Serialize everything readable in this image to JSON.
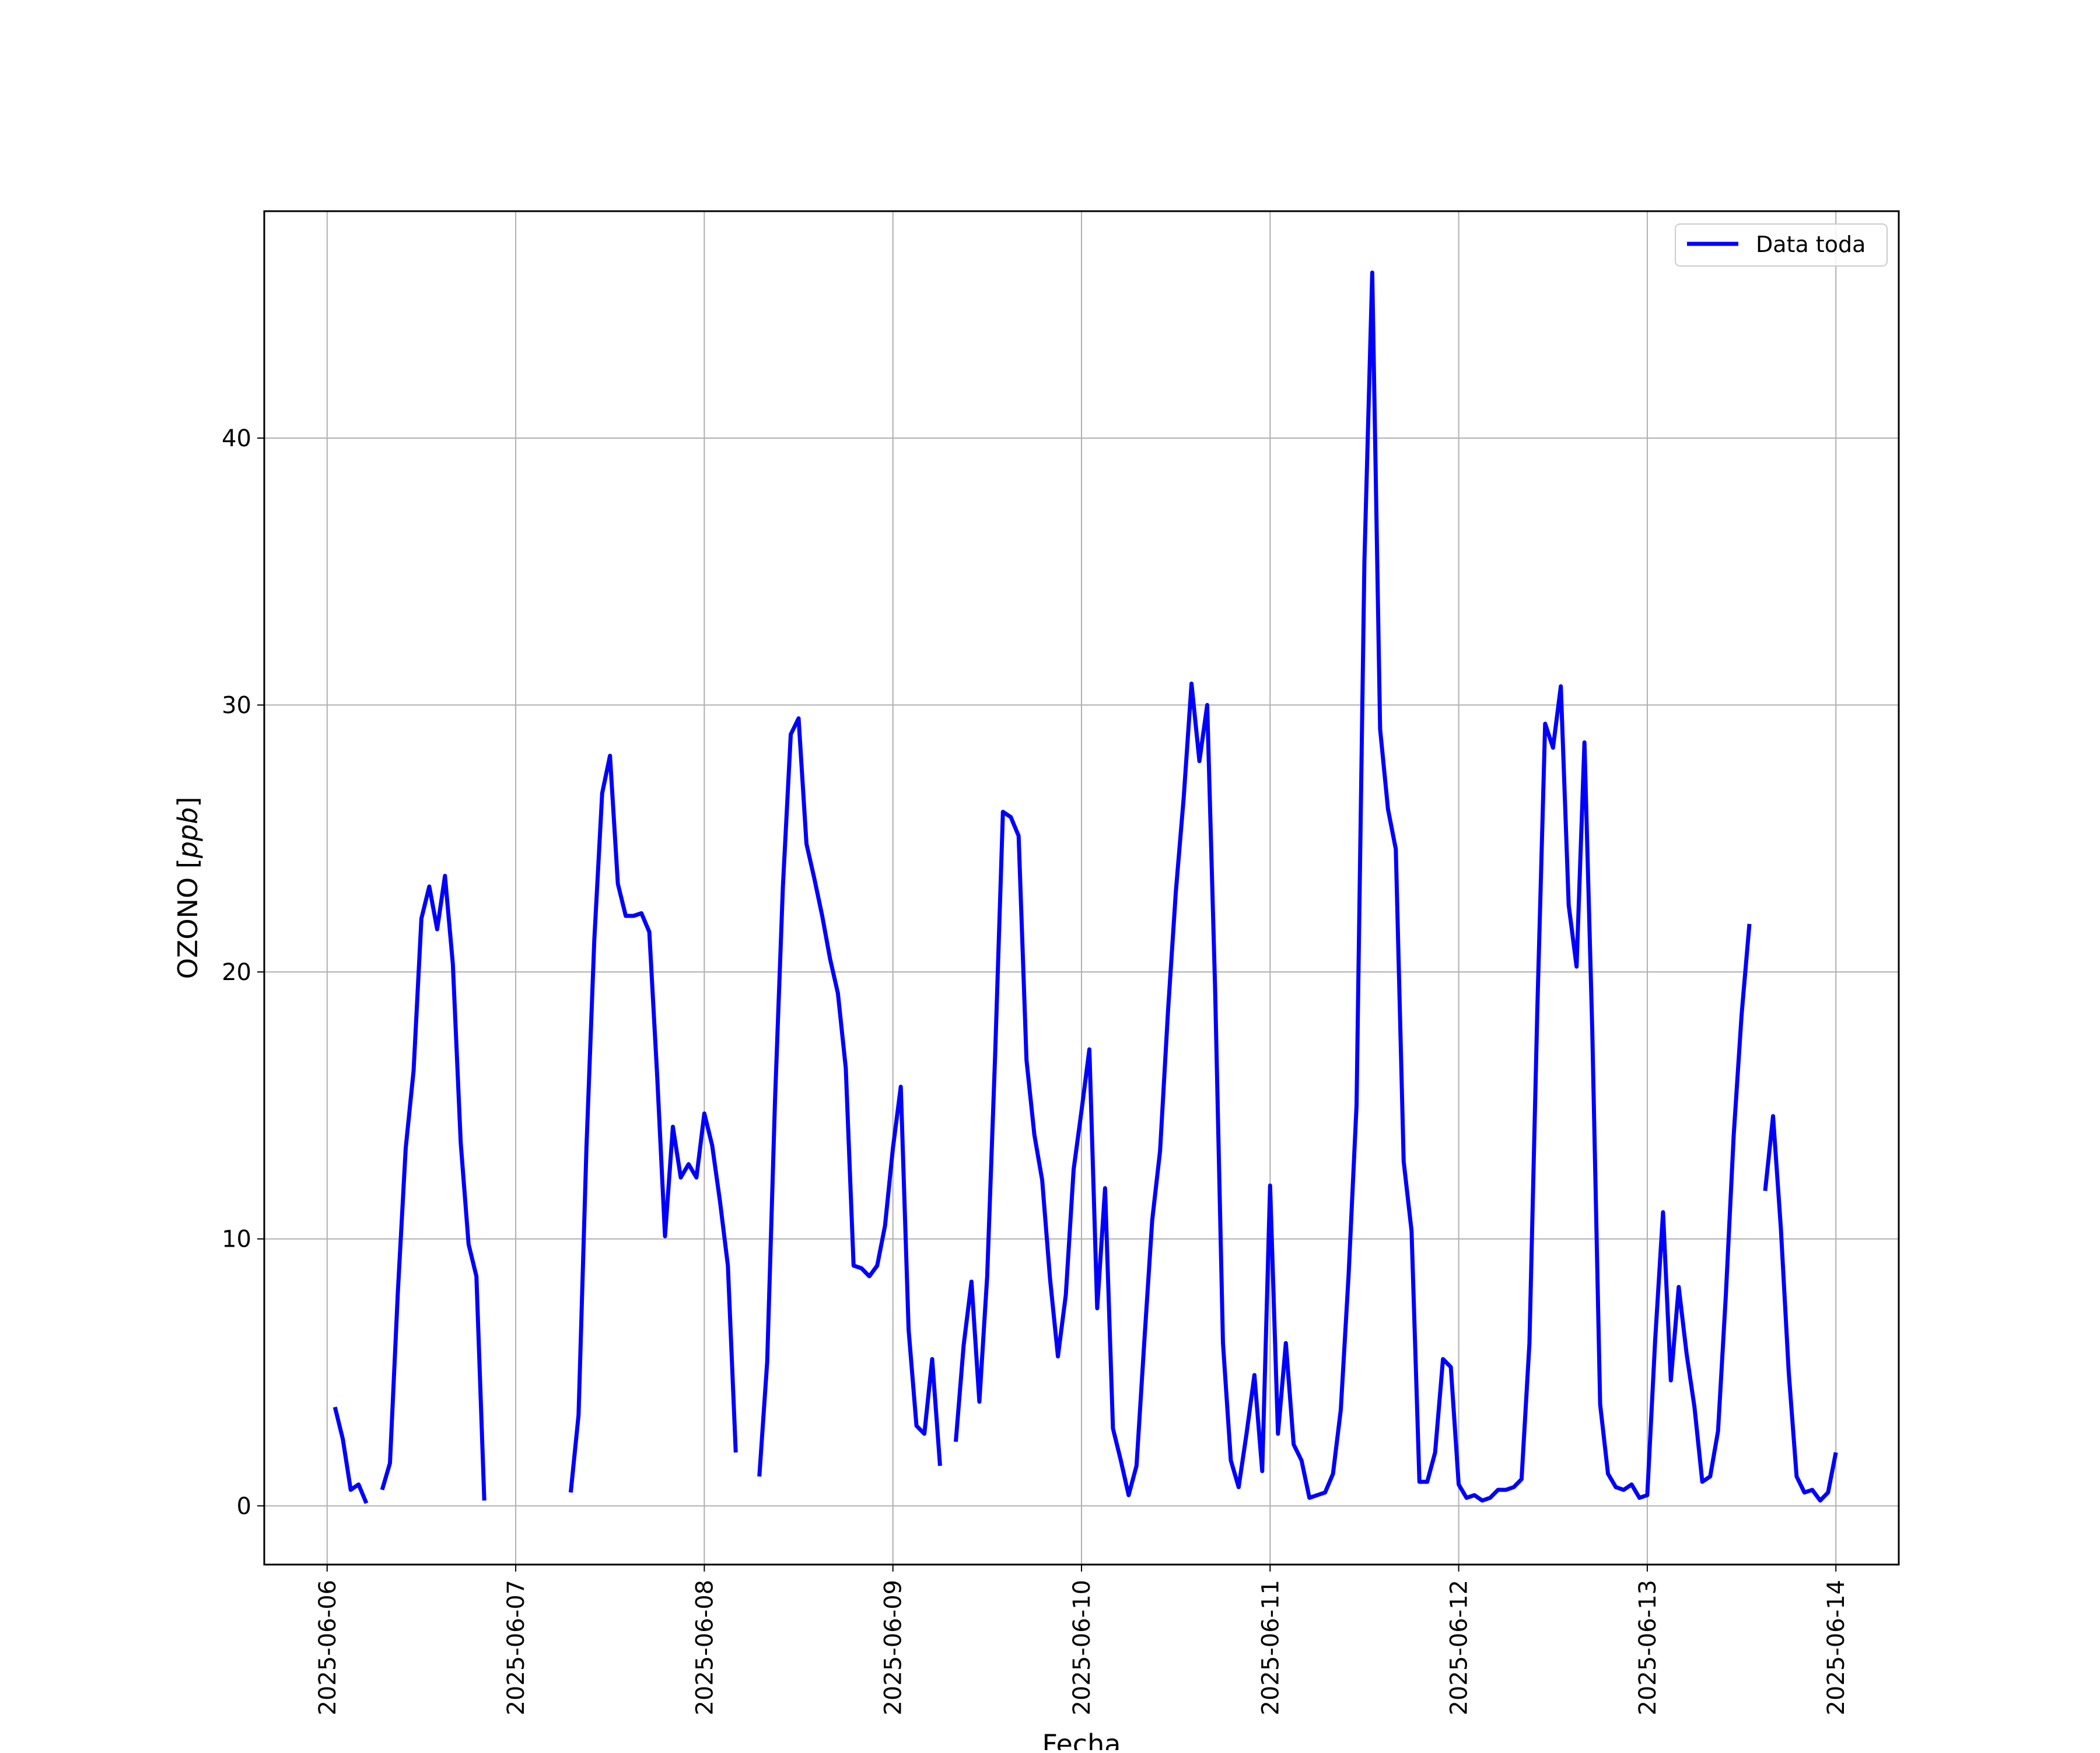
{
  "chart_data": {
    "type": "line",
    "title": "",
    "xlabel": "Fecha",
    "ylabel": "OZONO",
    "ylabel_unit": "ppb",
    "x_ticks": [
      "2025-06-06",
      "2025-06-07",
      "2025-06-08",
      "2025-06-09",
      "2025-06-10",
      "2025-06-11",
      "2025-06-12",
      "2025-06-13",
      "2025-06-14"
    ],
    "y_ticks": [
      "0",
      "10",
      "20",
      "30",
      "40"
    ],
    "xlim": [
      "2025-06-05 16:00",
      "2025-06-14 08:00"
    ],
    "ylim": [
      -2.2,
      48.5
    ],
    "grid": true,
    "legend_position": "top-right",
    "series": [
      {
        "name": "Data toda",
        "color": "#0000ff",
        "segments": [
          [
            [
              "2025-06-06 01:00",
              3.7
            ],
            [
              "2025-06-06 02:00",
              2.5
            ],
            [
              "2025-06-06 03:00",
              0.6
            ],
            [
              "2025-06-06 04:00",
              0.8
            ],
            [
              "2025-06-06 05:00",
              0.1
            ]
          ],
          [
            [
              "2025-06-06 07:00",
              0.6
            ],
            [
              "2025-06-06 08:00",
              1.6
            ],
            [
              "2025-06-06 09:00",
              8.0
            ],
            [
              "2025-06-06 10:00",
              13.4
            ],
            [
              "2025-06-06 11:00",
              16.3
            ],
            [
              "2025-06-06 12:00",
              22.0
            ],
            [
              "2025-06-06 13:00",
              23.2
            ],
            [
              "2025-06-06 14:00",
              21.6
            ],
            [
              "2025-06-06 15:00",
              23.6
            ],
            [
              "2025-06-06 16:00",
              20.3
            ],
            [
              "2025-06-06 17:00",
              13.6
            ],
            [
              "2025-06-06 18:00",
              9.8
            ],
            [
              "2025-06-06 19:00",
              8.6
            ],
            [
              "2025-06-06 20:00",
              0.2
            ]
          ],
          [
            [
              "2025-06-07 07:00",
              0.5
            ],
            [
              "2025-06-07 08:00",
              3.4
            ],
            [
              "2025-06-07 09:00",
              13.4
            ],
            [
              "2025-06-07 10:00",
              21.2
            ],
            [
              "2025-06-07 11:00",
              26.7
            ],
            [
              "2025-06-07 12:00",
              28.1
            ],
            [
              "2025-06-07 13:00",
              23.3
            ],
            [
              "2025-06-07 14:00",
              22.1
            ],
            [
              "2025-06-07 15:00",
              22.1
            ],
            [
              "2025-06-07 16:00",
              22.2
            ],
            [
              "2025-06-07 17:00",
              21.5
            ],
            [
              "2025-06-07 18:00",
              16.1
            ],
            [
              "2025-06-07 19:00",
              10.1
            ],
            [
              "2025-06-07 20:00",
              14.2
            ],
            [
              "2025-06-07 21:00",
              12.3
            ],
            [
              "2025-06-07 22:00",
              12.8
            ],
            [
              "2025-06-07 23:00",
              12.3
            ],
            [
              "2025-06-08 00:00",
              14.7
            ],
            [
              "2025-06-08 01:00",
              13.5
            ],
            [
              "2025-06-08 02:00",
              11.4
            ],
            [
              "2025-06-08 03:00",
              9.0
            ],
            [
              "2025-06-08 04:00",
              2.0
            ]
          ],
          [
            [
              "2025-06-08 07:00",
              1.1
            ],
            [
              "2025-06-08 08:00",
              5.4
            ],
            [
              "2025-06-08 09:00",
              15.2
            ],
            [
              "2025-06-08 10:00",
              23.2
            ],
            [
              "2025-06-08 11:00",
              28.9
            ],
            [
              "2025-06-08 12:00",
              29.5
            ],
            [
              "2025-06-08 13:00",
              24.8
            ],
            [
              "2025-06-08 14:00",
              23.5
            ],
            [
              "2025-06-08 15:00",
              22.1
            ],
            [
              "2025-06-08 16:00",
              20.5
            ],
            [
              "2025-06-08 17:00",
              19.2
            ],
            [
              "2025-06-08 18:00",
              16.4
            ],
            [
              "2025-06-08 19:00",
              9.0
            ],
            [
              "2025-06-08 20:00",
              8.9
            ],
            [
              "2025-06-08 21:00",
              8.6
            ],
            [
              "2025-06-08 22:00",
              9.0
            ],
            [
              "2025-06-08 23:00",
              10.5
            ],
            [
              "2025-06-09 00:00",
              13.4
            ],
            [
              "2025-06-09 01:00",
              15.7
            ],
            [
              "2025-06-09 02:00",
              6.6
            ],
            [
              "2025-06-09 03:00",
              3.0
            ],
            [
              "2025-06-09 04:00",
              2.7
            ],
            [
              "2025-06-09 05:00",
              5.5
            ],
            [
              "2025-06-09 06:00",
              1.5
            ]
          ],
          [
            [
              "2025-06-09 08:00",
              2.4
            ],
            [
              "2025-06-09 09:00",
              6.0
            ],
            [
              "2025-06-09 10:00",
              8.4
            ],
            [
              "2025-06-09 11:00",
              3.9
            ],
            [
              "2025-06-09 12:00",
              8.6
            ],
            [
              "2025-06-09 13:00",
              16.8
            ],
            [
              "2025-06-09 14:00",
              26.0
            ],
            [
              "2025-06-09 15:00",
              25.8
            ],
            [
              "2025-06-09 16:00",
              25.1
            ],
            [
              "2025-06-09 17:00",
              16.7
            ],
            [
              "2025-06-09 18:00",
              13.9
            ],
            [
              "2025-06-09 19:00",
              12.2
            ],
            [
              "2025-06-09 20:00",
              8.5
            ],
            [
              "2025-06-09 21:00",
              5.6
            ],
            [
              "2025-06-09 22:00",
              7.9
            ],
            [
              "2025-06-09 23:00",
              12.6
            ],
            [
              "2025-06-10 00:00",
              14.8
            ],
            [
              "2025-06-10 01:00",
              17.1
            ],
            [
              "2025-06-10 02:00",
              7.4
            ],
            [
              "2025-06-10 03:00",
              11.9
            ],
            [
              "2025-06-10 04:00",
              2.9
            ],
            [
              "2025-06-10 05:00",
              1.7
            ],
            [
              "2025-06-10 06:00",
              0.4
            ],
            [
              "2025-06-10 07:00",
              1.5
            ],
            [
              "2025-06-10 08:00",
              6.2
            ],
            [
              "2025-06-10 09:00",
              10.7
            ],
            [
              "2025-06-10 10:00",
              13.3
            ],
            [
              "2025-06-10 11:00",
              18.5
            ],
            [
              "2025-06-10 12:00",
              23.0
            ],
            [
              "2025-06-10 13:00",
              26.5
            ],
            [
              "2025-06-10 14:00",
              30.8
            ],
            [
              "2025-06-10 15:00",
              27.9
            ],
            [
              "2025-06-10 16:00",
              30.0
            ],
            [
              "2025-06-10 17:00",
              19.4
            ],
            [
              "2025-06-10 18:00",
              6.1
            ],
            [
              "2025-06-10 19:00",
              1.7
            ],
            [
              "2025-06-10 20:00",
              0.7
            ],
            [
              "2025-06-10 21:00",
              2.7
            ],
            [
              "2025-06-10 22:00",
              4.9
            ],
            [
              "2025-06-10 23:00",
              1.3
            ],
            [
              "2025-06-11 00:00",
              12.0
            ],
            [
              "2025-06-11 01:00",
              2.7
            ],
            [
              "2025-06-11 02:00",
              6.1
            ],
            [
              "2025-06-11 03:00",
              2.3
            ],
            [
              "2025-06-11 04:00",
              1.7
            ],
            [
              "2025-06-11 05:00",
              0.3
            ],
            [
              "2025-06-11 06:00",
              0.4
            ],
            [
              "2025-06-11 07:00",
              0.5
            ],
            [
              "2025-06-11 08:00",
              1.2
            ],
            [
              "2025-06-11 09:00",
              3.6
            ],
            [
              "2025-06-11 10:00",
              8.7
            ],
            [
              "2025-06-11 11:00",
              15.0
            ],
            [
              "2025-06-11 12:00",
              35.4
            ],
            [
              "2025-06-11 13:00",
              46.2
            ],
            [
              "2025-06-11 14:00",
              29.1
            ],
            [
              "2025-06-11 15:00",
              26.1
            ],
            [
              "2025-06-11 16:00",
              24.6
            ],
            [
              "2025-06-11 17:00",
              12.9
            ],
            [
              "2025-06-11 18:00",
              10.3
            ],
            [
              "2025-06-11 19:00",
              0.9
            ],
            [
              "2025-06-11 20:00",
              0.9
            ],
            [
              "2025-06-11 21:00",
              2.0
            ],
            [
              "2025-06-11 22:00",
              5.5
            ],
            [
              "2025-06-11 23:00",
              5.2
            ],
            [
              "2025-06-12 00:00",
              0.8
            ],
            [
              "2025-06-12 01:00",
              0.3
            ],
            [
              "2025-06-12 02:00",
              0.4
            ],
            [
              "2025-06-12 03:00",
              0.2
            ],
            [
              "2025-06-12 04:00",
              0.3
            ],
            [
              "2025-06-12 05:00",
              0.6
            ],
            [
              "2025-06-12 06:00",
              0.6
            ],
            [
              "2025-06-12 07:00",
              0.7
            ],
            [
              "2025-06-12 08:00",
              1.0
            ],
            [
              "2025-06-12 09:00",
              6.1
            ],
            [
              "2025-06-12 10:00",
              18.5
            ],
            [
              "2025-06-12 11:00",
              29.3
            ],
            [
              "2025-06-12 12:00",
              28.4
            ],
            [
              "2025-06-12 13:00",
              30.7
            ],
            [
              "2025-06-12 14:00",
              22.5
            ],
            [
              "2025-06-12 15:00",
              20.2
            ],
            [
              "2025-06-12 16:00",
              28.6
            ],
            [
              "2025-06-12 17:00",
              17.8
            ],
            [
              "2025-06-12 18:00",
              3.8
            ],
            [
              "2025-06-12 19:00",
              1.2
            ],
            [
              "2025-06-12 20:00",
              0.7
            ],
            [
              "2025-06-12 21:00",
              0.6
            ],
            [
              "2025-06-12 22:00",
              0.8
            ],
            [
              "2025-06-12 23:00",
              0.3
            ],
            [
              "2025-06-13 00:00",
              0.4
            ],
            [
              "2025-06-13 01:00",
              6.2
            ],
            [
              "2025-06-13 02:00",
              11.0
            ],
            [
              "2025-06-13 03:00",
              4.7
            ],
            [
              "2025-06-13 04:00",
              8.2
            ],
            [
              "2025-06-13 05:00",
              5.7
            ],
            [
              "2025-06-13 06:00",
              3.7
            ],
            [
              "2025-06-13 07:00",
              0.9
            ],
            [
              "2025-06-13 08:00",
              1.1
            ],
            [
              "2025-06-13 09:00",
              2.8
            ],
            [
              "2025-06-13 10:00",
              7.9
            ],
            [
              "2025-06-13 11:00",
              13.9
            ],
            [
              "2025-06-13 12:00",
              18.4
            ],
            [
              "2025-06-13 13:00",
              21.8
            ]
          ],
          [
            [
              "2025-06-13 15:00",
              11.8
            ],
            [
              "2025-06-13 16:00",
              14.6
            ],
            [
              "2025-06-13 17:00",
              10.4
            ],
            [
              "2025-06-13 18:00",
              5.0
            ],
            [
              "2025-06-13 19:00",
              1.1
            ],
            [
              "2025-06-13 20:00",
              0.5
            ],
            [
              "2025-06-13 21:00",
              0.6
            ],
            [
              "2025-06-13 22:00",
              0.2
            ],
            [
              "2025-06-13 23:00",
              0.5
            ],
            [
              "2025-06-14 00:00",
              2.0
            ]
          ]
        ]
      }
    ]
  }
}
